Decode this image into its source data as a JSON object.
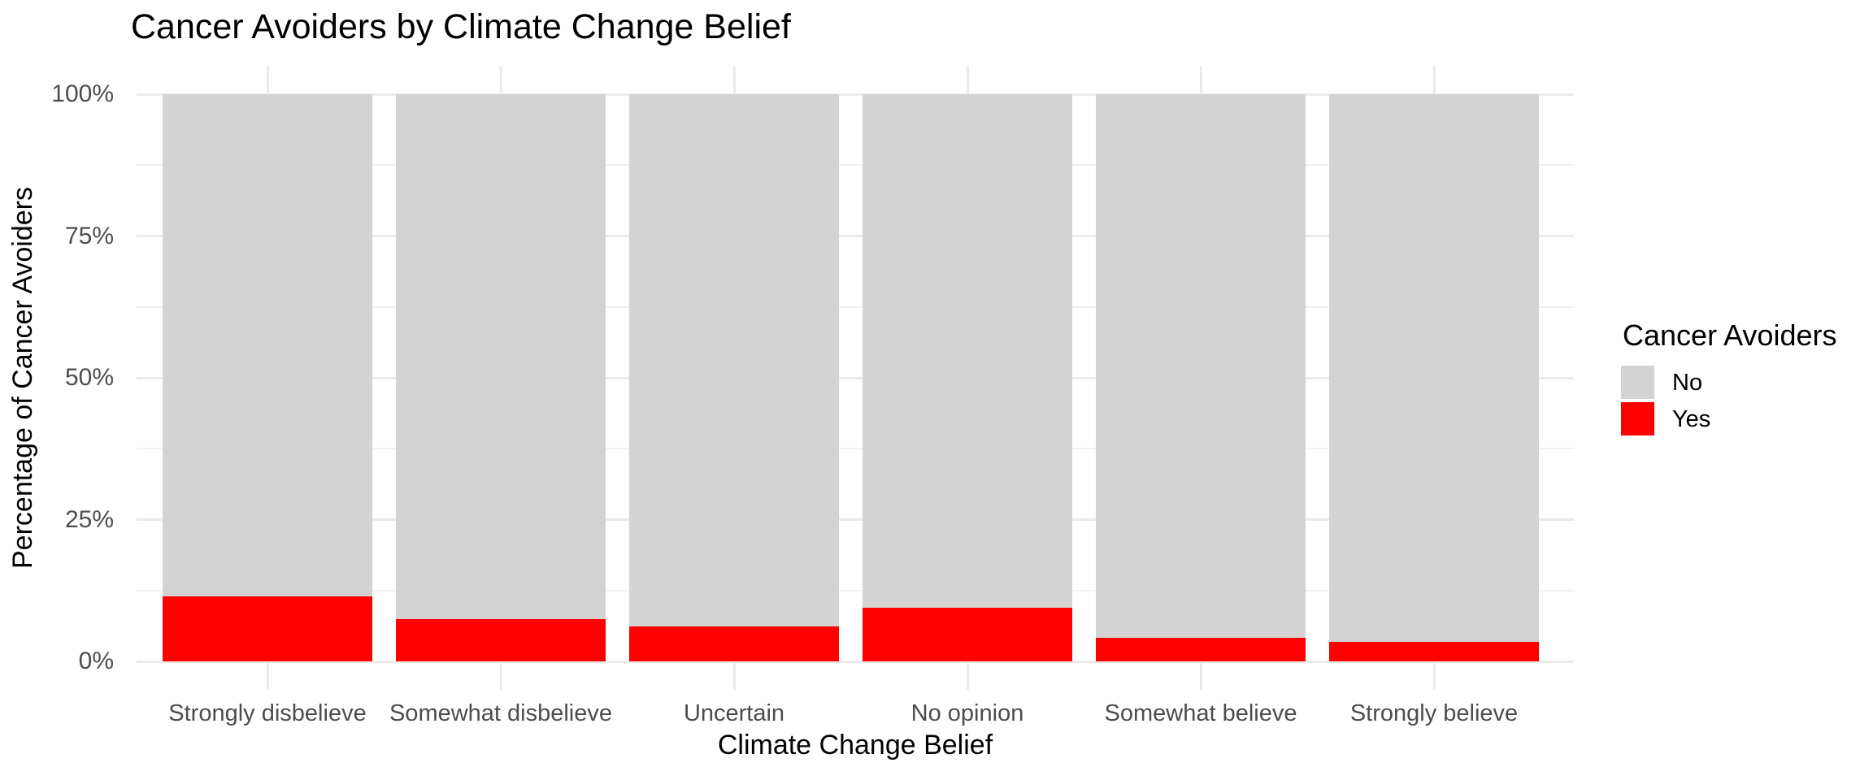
{
  "title": "Cancer Avoiders by Climate Change Belief",
  "colors": {
    "background": "#FFFFFF",
    "tick_label": "#4D4D4D",
    "text": "#000000",
    "yes_red": "#FF0000",
    "no_gray": "#D3D3D3"
  },
  "chart_data": {
    "type": "bar",
    "stacked": true,
    "normalized_percent": true,
    "title": "Cancer Avoiders by Climate Change Belief",
    "xlabel": "Climate Change Belief",
    "ylabel": "Percentage of Cancer Avoiders",
    "categories": [
      "Strongly disbelieve",
      "Somewhat disbelieve",
      "Uncertain",
      "No opinion",
      "Somewhat believe",
      "Strongly believe"
    ],
    "series": [
      {
        "name": "Yes",
        "color": "#FF0000",
        "values": [
          11.5,
          7.4,
          6.1,
          9.4,
          4.1,
          3.4
        ]
      },
      {
        "name": "No",
        "color": "#D3D3D3",
        "values": [
          88.5,
          92.6,
          93.9,
          90.6,
          95.9,
          96.6
        ]
      }
    ],
    "ylim": [
      0,
      100
    ],
    "y_ticks": [
      "0%",
      "25%",
      "50%",
      "75%",
      "100%"
    ],
    "y_tick_values": [
      0,
      25,
      50,
      75,
      100
    ],
    "grid": {
      "on": true,
      "major_color": "#EBEBEB",
      "minor_color": "#F2F2F2",
      "minor_y_values": [
        12.5,
        37.5,
        62.5,
        87.5
      ]
    },
    "legend": {
      "title": "Cancer Avoiders",
      "position": "right",
      "entries": [
        {
          "label": "No",
          "color": "#D3D3D3"
        },
        {
          "label": "Yes",
          "color": "#FF0000"
        }
      ]
    }
  }
}
